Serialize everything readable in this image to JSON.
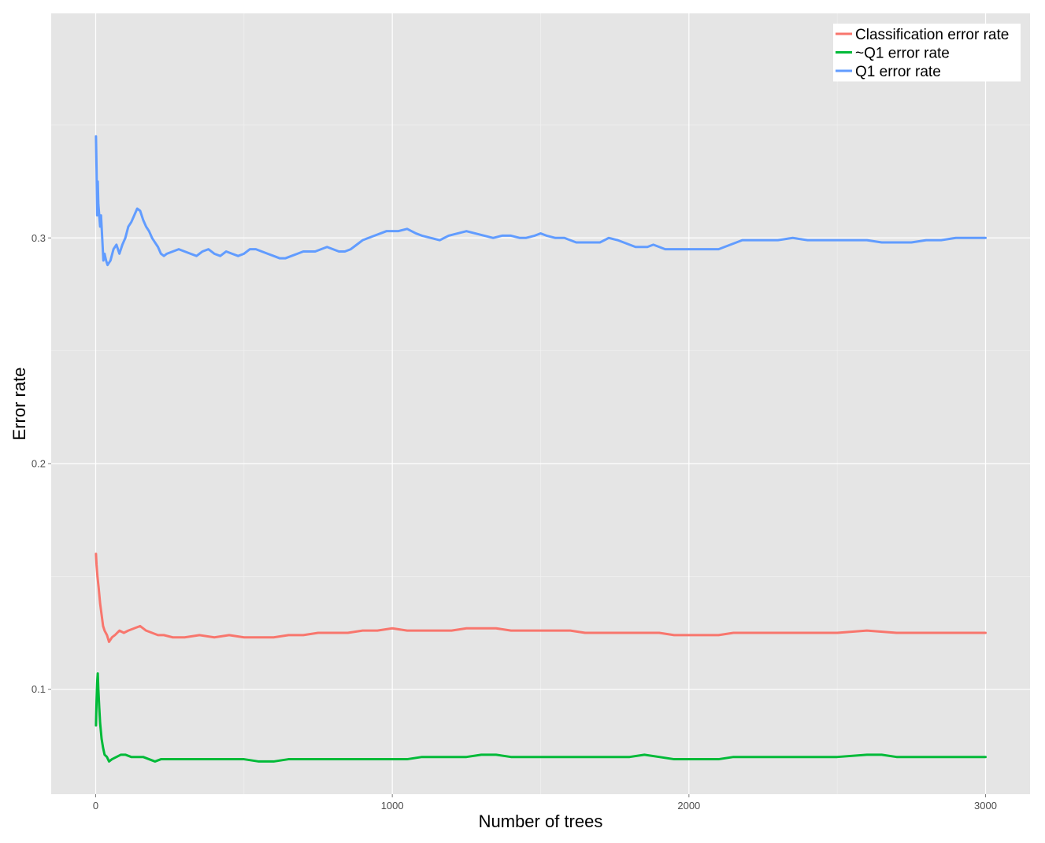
{
  "chart_data": {
    "type": "line",
    "title": "",
    "xlabel": "Number of trees",
    "ylabel": "Error rate",
    "xlim": [
      -150,
      3150
    ],
    "ylim": [
      0.0535,
      0.3995
    ],
    "x_ticks": [
      0,
      1000,
      2000,
      3000
    ],
    "x_tick_labels": [
      "0",
      "1000",
      "2000",
      "3000"
    ],
    "y_ticks": [
      0.1,
      0.2,
      0.3
    ],
    "y_tick_labels": [
      "0.1",
      "0.2",
      "0.3"
    ],
    "grid": true,
    "background": "#e5e5e5",
    "legend": {
      "position": "top-right"
    },
    "series": [
      {
        "name": "Classification error rate",
        "color": "#f8766d",
        "points": [
          [
            1,
            0.16
          ],
          [
            3,
            0.155
          ],
          [
            6,
            0.15
          ],
          [
            10,
            0.145
          ],
          [
            15,
            0.138
          ],
          [
            20,
            0.133
          ],
          [
            25,
            0.128
          ],
          [
            30,
            0.126
          ],
          [
            38,
            0.124
          ],
          [
            45,
            0.121
          ],
          [
            55,
            0.123
          ],
          [
            65,
            0.124
          ],
          [
            80,
            0.126
          ],
          [
            95,
            0.125
          ],
          [
            110,
            0.126
          ],
          [
            130,
            0.127
          ],
          [
            150,
            0.128
          ],
          [
            170,
            0.126
          ],
          [
            190,
            0.125
          ],
          [
            210,
            0.124
          ],
          [
            230,
            0.124
          ],
          [
            260,
            0.123
          ],
          [
            300,
            0.123
          ],
          [
            350,
            0.124
          ],
          [
            400,
            0.123
          ],
          [
            450,
            0.124
          ],
          [
            500,
            0.123
          ],
          [
            550,
            0.123
          ],
          [
            600,
            0.123
          ],
          [
            650,
            0.124
          ],
          [
            700,
            0.124
          ],
          [
            750,
            0.125
          ],
          [
            800,
            0.125
          ],
          [
            850,
            0.125
          ],
          [
            900,
            0.126
          ],
          [
            950,
            0.126
          ],
          [
            1000,
            0.127
          ],
          [
            1050,
            0.126
          ],
          [
            1100,
            0.126
          ],
          [
            1150,
            0.126
          ],
          [
            1200,
            0.126
          ],
          [
            1250,
            0.127
          ],
          [
            1300,
            0.127
          ],
          [
            1350,
            0.127
          ],
          [
            1400,
            0.126
          ],
          [
            1450,
            0.126
          ],
          [
            1500,
            0.126
          ],
          [
            1550,
            0.126
          ],
          [
            1600,
            0.126
          ],
          [
            1650,
            0.125
          ],
          [
            1700,
            0.125
          ],
          [
            1750,
            0.125
          ],
          [
            1800,
            0.125
          ],
          [
            1850,
            0.125
          ],
          [
            1900,
            0.125
          ],
          [
            1950,
            0.124
          ],
          [
            2000,
            0.124
          ],
          [
            2050,
            0.124
          ],
          [
            2100,
            0.124
          ],
          [
            2150,
            0.125
          ],
          [
            2200,
            0.125
          ],
          [
            2300,
            0.125
          ],
          [
            2400,
            0.125
          ],
          [
            2500,
            0.125
          ],
          [
            2600,
            0.126
          ],
          [
            2700,
            0.125
          ],
          [
            2800,
            0.125
          ],
          [
            2900,
            0.125
          ],
          [
            3000,
            0.125
          ]
        ]
      },
      {
        "name": "~Q1 error rate",
        "color": "#00ba38",
        "points": [
          [
            1,
            0.084
          ],
          [
            3,
            0.095
          ],
          [
            5,
            0.103
          ],
          [
            7,
            0.107
          ],
          [
            9,
            0.1
          ],
          [
            12,
            0.092
          ],
          [
            15,
            0.085
          ],
          [
            20,
            0.078
          ],
          [
            25,
            0.074
          ],
          [
            30,
            0.071
          ],
          [
            38,
            0.07
          ],
          [
            45,
            0.068
          ],
          [
            55,
            0.069
          ],
          [
            70,
            0.07
          ],
          [
            85,
            0.071
          ],
          [
            100,
            0.071
          ],
          [
            120,
            0.07
          ],
          [
            140,
            0.07
          ],
          [
            160,
            0.07
          ],
          [
            180,
            0.069
          ],
          [
            200,
            0.068
          ],
          [
            220,
            0.069
          ],
          [
            250,
            0.069
          ],
          [
            300,
            0.069
          ],
          [
            350,
            0.069
          ],
          [
            400,
            0.069
          ],
          [
            450,
            0.069
          ],
          [
            500,
            0.069
          ],
          [
            550,
            0.068
          ],
          [
            600,
            0.068
          ],
          [
            650,
            0.069
          ],
          [
            700,
            0.069
          ],
          [
            750,
            0.069
          ],
          [
            800,
            0.069
          ],
          [
            850,
            0.069
          ],
          [
            900,
            0.069
          ],
          [
            950,
            0.069
          ],
          [
            1000,
            0.069
          ],
          [
            1050,
            0.069
          ],
          [
            1100,
            0.07
          ],
          [
            1150,
            0.07
          ],
          [
            1200,
            0.07
          ],
          [
            1250,
            0.07
          ],
          [
            1300,
            0.071
          ],
          [
            1350,
            0.071
          ],
          [
            1400,
            0.07
          ],
          [
            1450,
            0.07
          ],
          [
            1500,
            0.07
          ],
          [
            1550,
            0.07
          ],
          [
            1600,
            0.07
          ],
          [
            1650,
            0.07
          ],
          [
            1700,
            0.07
          ],
          [
            1750,
            0.07
          ],
          [
            1800,
            0.07
          ],
          [
            1850,
            0.071
          ],
          [
            1900,
            0.07
          ],
          [
            1950,
            0.069
          ],
          [
            2000,
            0.069
          ],
          [
            2050,
            0.069
          ],
          [
            2100,
            0.069
          ],
          [
            2150,
            0.07
          ],
          [
            2200,
            0.07
          ],
          [
            2300,
            0.07
          ],
          [
            2400,
            0.07
          ],
          [
            2500,
            0.07
          ],
          [
            2600,
            0.071
          ],
          [
            2650,
            0.071
          ],
          [
            2700,
            0.07
          ],
          [
            2800,
            0.07
          ],
          [
            2900,
            0.07
          ],
          [
            3000,
            0.07
          ]
        ]
      },
      {
        "name": "Q1 error rate",
        "color": "#619cff",
        "points": [
          [
            1,
            0.345
          ],
          [
            3,
            0.33
          ],
          [
            5,
            0.31
          ],
          [
            7,
            0.325
          ],
          [
            9,
            0.315
          ],
          [
            12,
            0.31
          ],
          [
            15,
            0.305
          ],
          [
            18,
            0.31
          ],
          [
            22,
            0.3
          ],
          [
            26,
            0.29
          ],
          [
            30,
            0.293
          ],
          [
            35,
            0.29
          ],
          [
            40,
            0.288
          ],
          [
            50,
            0.29
          ],
          [
            60,
            0.295
          ],
          [
            70,
            0.297
          ],
          [
            80,
            0.293
          ],
          [
            90,
            0.297
          ],
          [
            100,
            0.3
          ],
          [
            110,
            0.305
          ],
          [
            120,
            0.307
          ],
          [
            130,
            0.31
          ],
          [
            140,
            0.313
          ],
          [
            150,
            0.312
          ],
          [
            160,
            0.308
          ],
          [
            170,
            0.305
          ],
          [
            180,
            0.303
          ],
          [
            190,
            0.3
          ],
          [
            200,
            0.298
          ],
          [
            210,
            0.296
          ],
          [
            220,
            0.293
          ],
          [
            230,
            0.292
          ],
          [
            240,
            0.293
          ],
          [
            260,
            0.294
          ],
          [
            280,
            0.295
          ],
          [
            300,
            0.294
          ],
          [
            320,
            0.293
          ],
          [
            340,
            0.292
          ],
          [
            360,
            0.294
          ],
          [
            380,
            0.295
          ],
          [
            400,
            0.293
          ],
          [
            420,
            0.292
          ],
          [
            440,
            0.294
          ],
          [
            460,
            0.293
          ],
          [
            480,
            0.292
          ],
          [
            500,
            0.293
          ],
          [
            520,
            0.295
          ],
          [
            540,
            0.295
          ],
          [
            560,
            0.294
          ],
          [
            580,
            0.293
          ],
          [
            600,
            0.292
          ],
          [
            620,
            0.291
          ],
          [
            640,
            0.291
          ],
          [
            660,
            0.292
          ],
          [
            680,
            0.293
          ],
          [
            700,
            0.294
          ],
          [
            720,
            0.294
          ],
          [
            740,
            0.294
          ],
          [
            760,
            0.295
          ],
          [
            780,
            0.296
          ],
          [
            800,
            0.295
          ],
          [
            820,
            0.294
          ],
          [
            840,
            0.294
          ],
          [
            860,
            0.295
          ],
          [
            880,
            0.297
          ],
          [
            900,
            0.299
          ],
          [
            920,
            0.3
          ],
          [
            940,
            0.301
          ],
          [
            960,
            0.302
          ],
          [
            980,
            0.303
          ],
          [
            1000,
            0.303
          ],
          [
            1020,
            0.303
          ],
          [
            1050,
            0.304
          ],
          [
            1080,
            0.302
          ],
          [
            1100,
            0.301
          ],
          [
            1130,
            0.3
          ],
          [
            1160,
            0.299
          ],
          [
            1190,
            0.301
          ],
          [
            1220,
            0.302
          ],
          [
            1250,
            0.303
          ],
          [
            1280,
            0.302
          ],
          [
            1310,
            0.301
          ],
          [
            1340,
            0.3
          ],
          [
            1370,
            0.301
          ],
          [
            1400,
            0.301
          ],
          [
            1430,
            0.3
          ],
          [
            1450,
            0.3
          ],
          [
            1480,
            0.301
          ],
          [
            1500,
            0.302
          ],
          [
            1520,
            0.301
          ],
          [
            1550,
            0.3
          ],
          [
            1580,
            0.3
          ],
          [
            1600,
            0.299
          ],
          [
            1620,
            0.298
          ],
          [
            1650,
            0.298
          ],
          [
            1680,
            0.298
          ],
          [
            1700,
            0.298
          ],
          [
            1730,
            0.3
          ],
          [
            1760,
            0.299
          ],
          [
            1780,
            0.298
          ],
          [
            1800,
            0.297
          ],
          [
            1820,
            0.296
          ],
          [
            1840,
            0.296
          ],
          [
            1860,
            0.296
          ],
          [
            1880,
            0.297
          ],
          [
            1900,
            0.296
          ],
          [
            1920,
            0.295
          ],
          [
            1940,
            0.295
          ],
          [
            1960,
            0.295
          ],
          [
            2000,
            0.295
          ],
          [
            2040,
            0.295
          ],
          [
            2080,
            0.295
          ],
          [
            2100,
            0.295
          ],
          [
            2120,
            0.296
          ],
          [
            2140,
            0.297
          ],
          [
            2160,
            0.298
          ],
          [
            2180,
            0.299
          ],
          [
            2200,
            0.299
          ],
          [
            2250,
            0.299
          ],
          [
            2300,
            0.299
          ],
          [
            2350,
            0.3
          ],
          [
            2400,
            0.299
          ],
          [
            2450,
            0.299
          ],
          [
            2500,
            0.299
          ],
          [
            2550,
            0.299
          ],
          [
            2600,
            0.299
          ],
          [
            2650,
            0.298
          ],
          [
            2700,
            0.298
          ],
          [
            2750,
            0.298
          ],
          [
            2800,
            0.299
          ],
          [
            2850,
            0.299
          ],
          [
            2900,
            0.3
          ],
          [
            2950,
            0.3
          ],
          [
            3000,
            0.3
          ]
        ]
      }
    ]
  }
}
